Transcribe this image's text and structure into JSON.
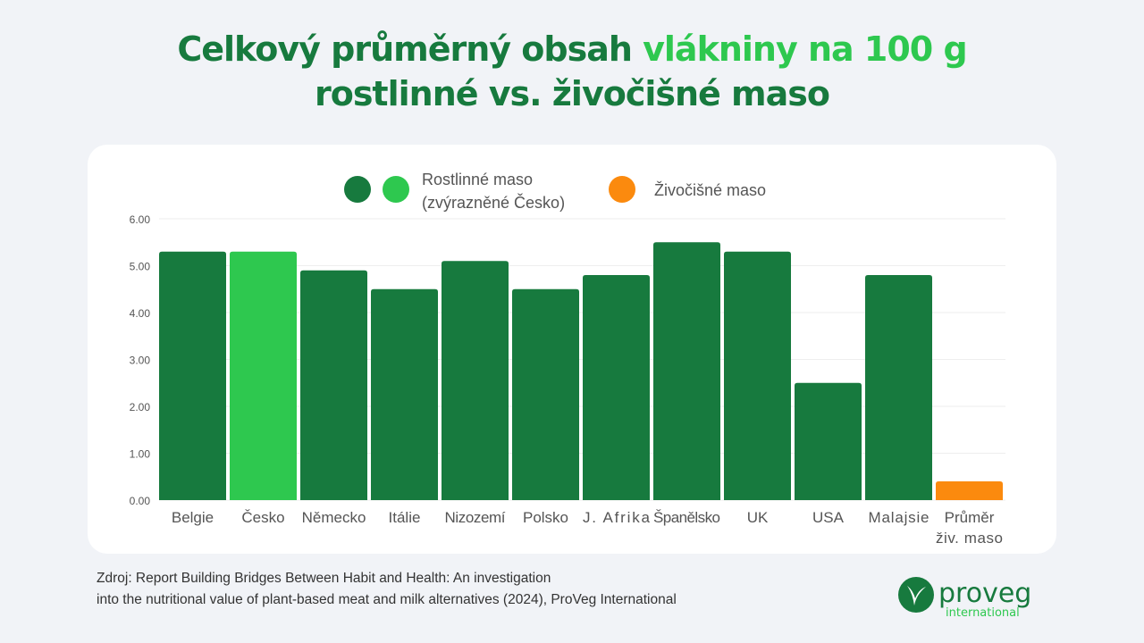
{
  "title": {
    "line1_a": "Celkový průměrný obsah ",
    "line1_b": "vlákniny na 100 g",
    "line2": "rostlinné vs. živočišné maso"
  },
  "colors": {
    "dark_green": "#177a3e",
    "light_green": "#2ec84f",
    "orange": "#fb8a0e"
  },
  "chart_data": {
    "type": "bar",
    "categories": [
      "Belgie",
      "Česko",
      "Německo",
      "Itálie",
      "Nizozemí",
      "Polsko",
      "J. Afrika",
      "Španělsko",
      "UK",
      "USA",
      "Malajsie",
      "Průměr živ. maso"
    ],
    "category_lines": [
      [
        "Belgie"
      ],
      [
        "Česko"
      ],
      [
        "Německo"
      ],
      [
        "Itálie"
      ],
      [
        "Nizozemí"
      ],
      [
        "Polsko"
      ],
      [
        "J. Afrika"
      ],
      [
        "Španělsko"
      ],
      [
        "UK"
      ],
      [
        "USA"
      ],
      [
        "Malajsie"
      ],
      [
        "Průměr",
        "živ. maso"
      ]
    ],
    "values": [
      5.3,
      5.3,
      4.9,
      4.5,
      5.1,
      4.5,
      4.8,
      5.5,
      5.3,
      2.5,
      4.8,
      0.4
    ],
    "bar_colors": [
      "#177a3e",
      "#2ec84f",
      "#177a3e",
      "#177a3e",
      "#177a3e",
      "#177a3e",
      "#177a3e",
      "#177a3e",
      "#177a3e",
      "#177a3e",
      "#177a3e",
      "#fb8a0e"
    ],
    "ylim": [
      0,
      6
    ],
    "yticks": [
      "0.00",
      "1.00",
      "2.00",
      "3.00",
      "4.00",
      "5.00",
      "6.00"
    ],
    "grid": true,
    "legend_position": "top",
    "legend": [
      {
        "label_line1": "Rostlinné maso",
        "label_line2": "(zvýrazněné Česko)",
        "colors": [
          "#177a3e",
          "#2ec84f"
        ]
      },
      {
        "label_line1": "Živočišné maso",
        "colors": [
          "#fb8a0e"
        ]
      }
    ]
  },
  "source": {
    "line1": "Zdroj: Report Building Bridges Between Habit and Health: An investigation",
    "line2": "into the nutritional value of plant-based meat and milk alternatives (2024), ProVeg International"
  },
  "logo": {
    "name": "proveg",
    "sub": "international"
  }
}
